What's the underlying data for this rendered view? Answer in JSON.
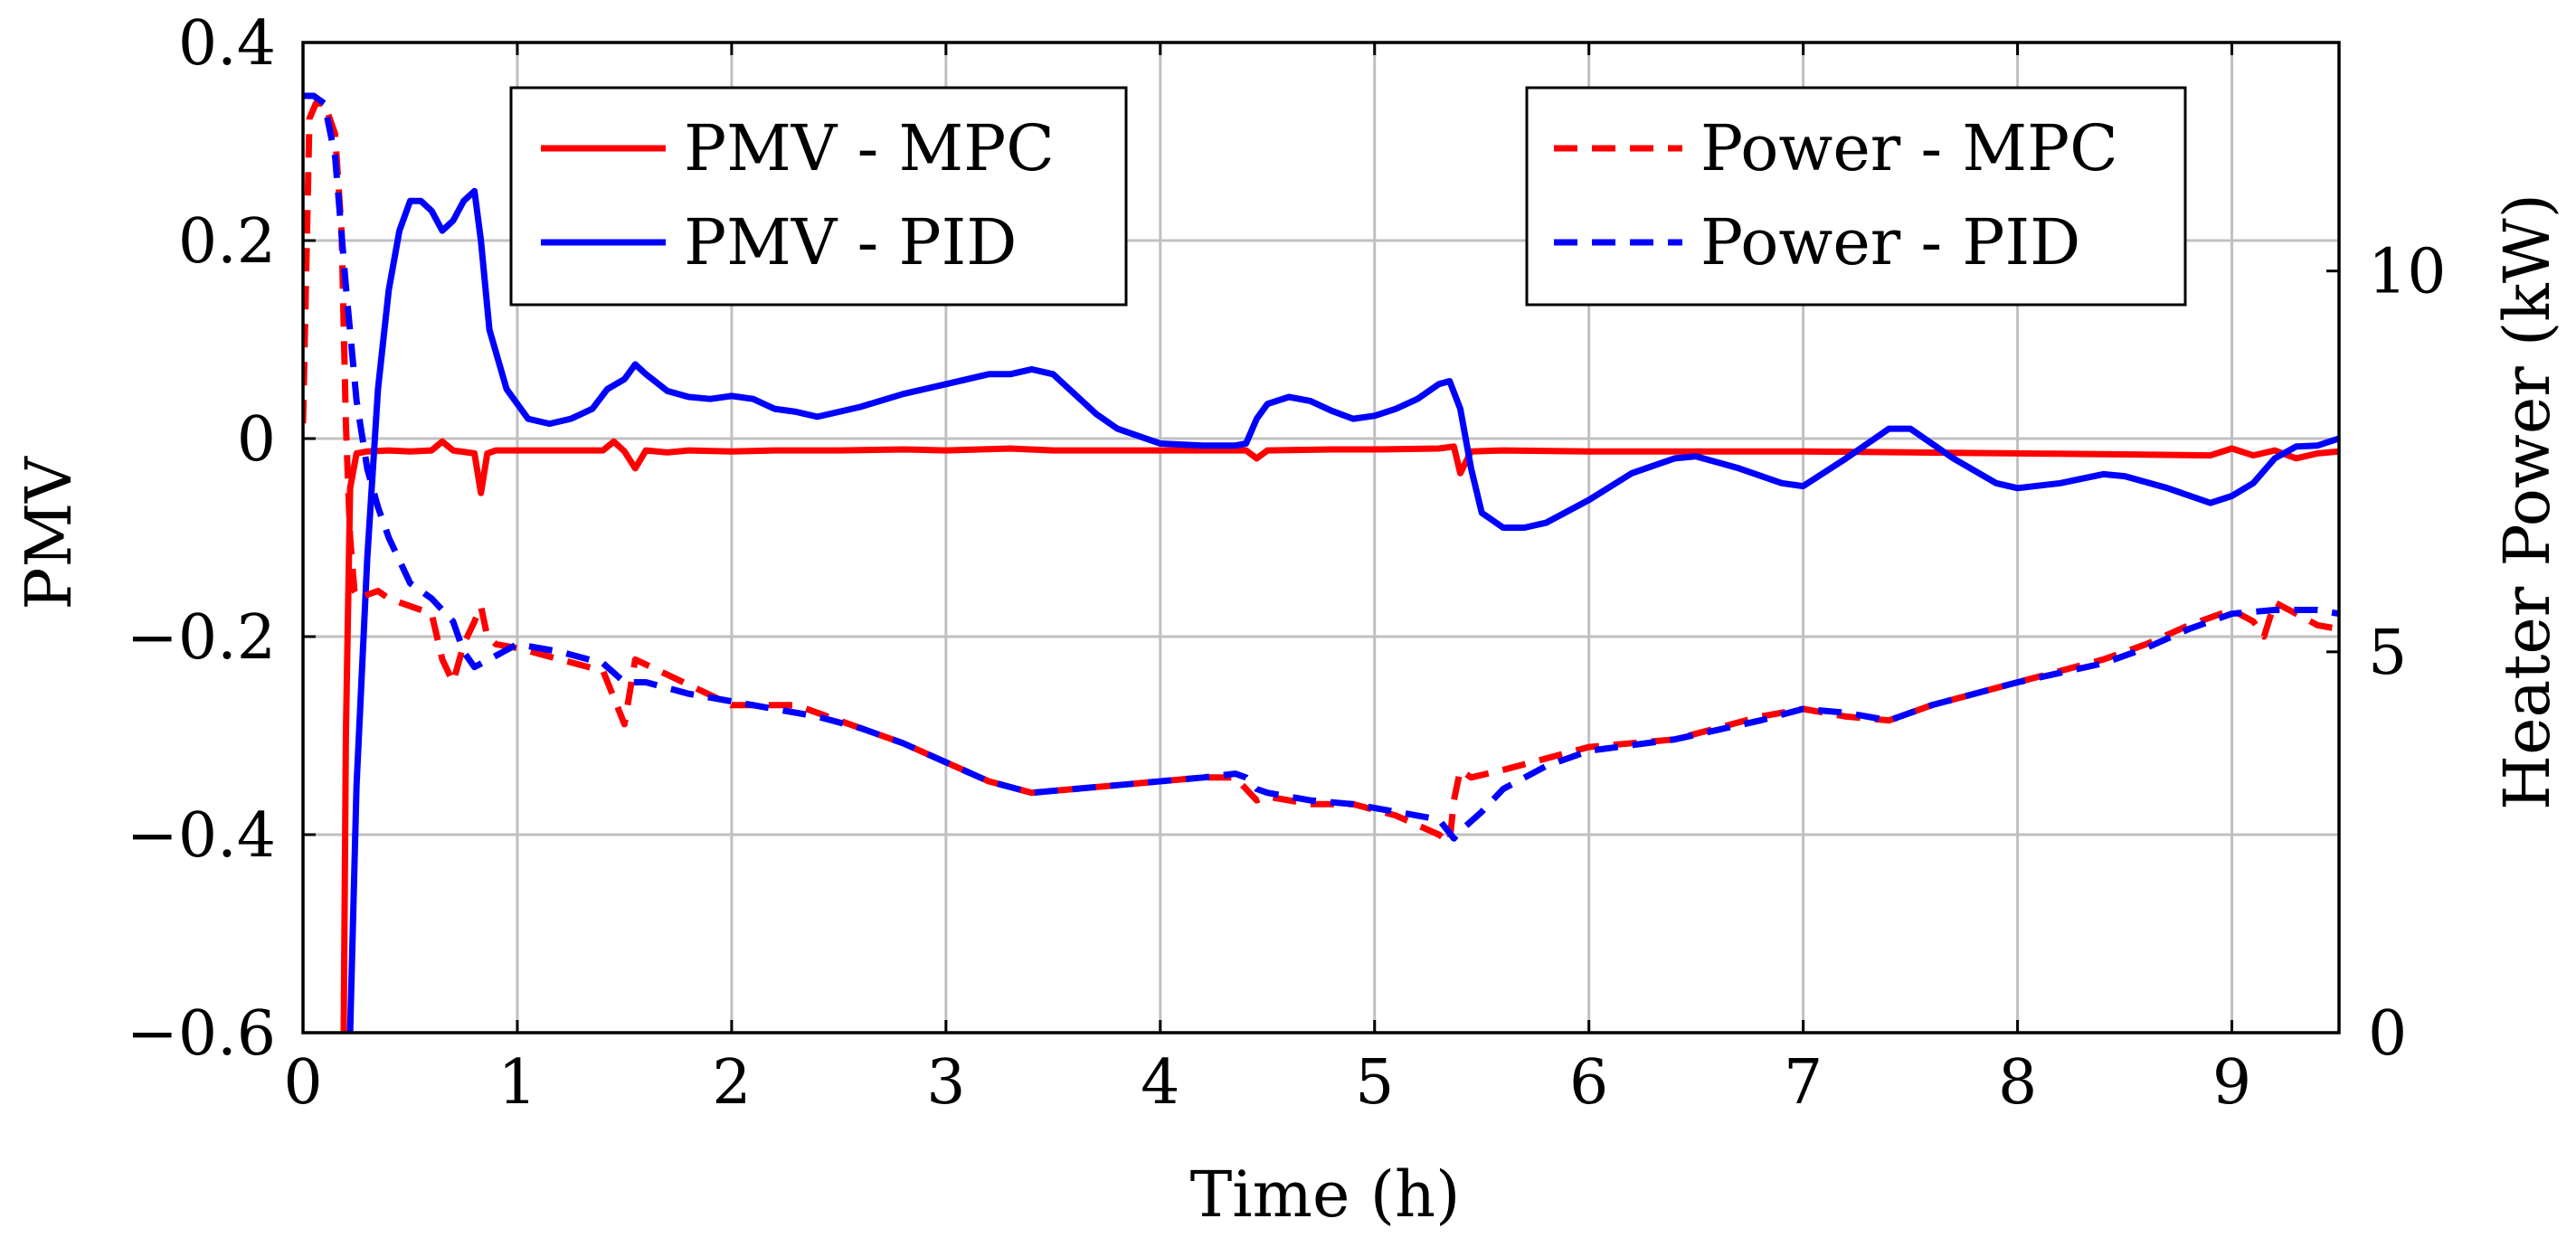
{
  "chart_data": {
    "type": "line",
    "title": "",
    "xlabel": "Time (h)",
    "ylabel": "PMV",
    "y2label": "Heater Power (kW)",
    "xlim": [
      0,
      9.5
    ],
    "ylim": [
      -0.6,
      0.4
    ],
    "y2lim": [
      0,
      13
    ],
    "xticks": [
      0,
      1,
      2,
      3,
      4,
      5,
      6,
      7,
      8,
      9
    ],
    "yticks": [
      -0.6,
      -0.4,
      -0.2,
      0,
      0.2,
      0.4
    ],
    "yticklabels": [
      "−0.6",
      "−0.4",
      "−0.2",
      "0",
      "0.2",
      "0.4"
    ],
    "y2ticks": [
      0,
      5,
      10
    ],
    "grid": true,
    "legends": [
      {
        "placement": "top-left",
        "entries": [
          "PMV - MPC",
          "PMV - PID"
        ]
      },
      {
        "placement": "top-right",
        "entries": [
          "Power - MPC",
          "Power - PID"
        ]
      }
    ],
    "series": [
      {
        "name": "PMV - MPC",
        "axis": "left",
        "color": "#ff0000",
        "style": "solid",
        "x": [
          0.19,
          0.2,
          0.22,
          0.25,
          0.3,
          0.4,
          0.5,
          0.6,
          0.65,
          0.7,
          0.8,
          0.83,
          0.86,
          0.9,
          1.0,
          1.2,
          1.4,
          1.45,
          1.5,
          1.55,
          1.6,
          1.7,
          1.8,
          2.0,
          2.2,
          2.5,
          2.8,
          3.0,
          3.3,
          3.5,
          3.8,
          4.0,
          4.3,
          4.4,
          4.45,
          4.5,
          4.8,
          5.0,
          5.3,
          5.37,
          5.4,
          5.45,
          5.6,
          6.0,
          6.5,
          7.0,
          7.5,
          8.0,
          8.5,
          8.9,
          9.0,
          9.1,
          9.2,
          9.3,
          9.4,
          9.5
        ],
        "y": [
          -0.6,
          -0.3,
          -0.05,
          -0.015,
          -0.013,
          -0.012,
          -0.013,
          -0.012,
          -0.003,
          -0.012,
          -0.015,
          -0.055,
          -0.015,
          -0.012,
          -0.012,
          -0.012,
          -0.012,
          -0.003,
          -0.013,
          -0.03,
          -0.012,
          -0.014,
          -0.012,
          -0.013,
          -0.012,
          -0.012,
          -0.011,
          -0.012,
          -0.01,
          -0.012,
          -0.012,
          -0.012,
          -0.012,
          -0.012,
          -0.02,
          -0.012,
          -0.011,
          -0.011,
          -0.01,
          -0.008,
          -0.035,
          -0.013,
          -0.012,
          -0.013,
          -0.013,
          -0.013,
          -0.014,
          -0.015,
          -0.016,
          -0.017,
          -0.01,
          -0.017,
          -0.012,
          -0.02,
          -0.015,
          -0.013
        ]
      },
      {
        "name": "PMV - PID",
        "axis": "left",
        "color": "#0000ff",
        "style": "solid",
        "x": [
          0.22,
          0.25,
          0.3,
          0.35,
          0.4,
          0.45,
          0.5,
          0.55,
          0.6,
          0.65,
          0.7,
          0.75,
          0.8,
          0.83,
          0.87,
          0.95,
          1.05,
          1.15,
          1.25,
          1.35,
          1.42,
          1.5,
          1.55,
          1.6,
          1.7,
          1.8,
          1.9,
          2.0,
          2.1,
          2.2,
          2.3,
          2.4,
          2.6,
          2.8,
          3.0,
          3.2,
          3.3,
          3.4,
          3.5,
          3.6,
          3.7,
          3.8,
          4.0,
          4.2,
          4.35,
          4.4,
          4.45,
          4.5,
          4.6,
          4.7,
          4.8,
          4.9,
          5.0,
          5.1,
          5.2,
          5.3,
          5.35,
          5.4,
          5.45,
          5.5,
          5.6,
          5.7,
          5.8,
          6.0,
          6.2,
          6.4,
          6.5,
          6.7,
          6.9,
          7.0,
          7.2,
          7.4,
          7.5,
          7.7,
          7.9,
          8.0,
          8.2,
          8.4,
          8.5,
          8.7,
          8.9,
          9.0,
          9.1,
          9.2,
          9.3,
          9.4,
          9.5
        ],
        "y": [
          -0.6,
          -0.35,
          -0.12,
          0.05,
          0.15,
          0.21,
          0.24,
          0.24,
          0.23,
          0.21,
          0.22,
          0.24,
          0.25,
          0.2,
          0.11,
          0.05,
          0.02,
          0.015,
          0.02,
          0.03,
          0.05,
          0.06,
          0.075,
          0.065,
          0.048,
          0.042,
          0.04,
          0.043,
          0.04,
          0.03,
          0.027,
          0.022,
          0.032,
          0.045,
          0.055,
          0.065,
          0.065,
          0.07,
          0.065,
          0.045,
          0.025,
          0.01,
          -0.005,
          -0.007,
          -0.007,
          -0.005,
          0.02,
          0.035,
          0.042,
          0.038,
          0.028,
          0.02,
          0.023,
          0.03,
          0.04,
          0.055,
          0.058,
          0.03,
          -0.03,
          -0.075,
          -0.09,
          -0.09,
          -0.085,
          -0.062,
          -0.035,
          -0.02,
          -0.018,
          -0.03,
          -0.045,
          -0.048,
          -0.02,
          0.01,
          0.01,
          -0.02,
          -0.045,
          -0.05,
          -0.045,
          -0.036,
          -0.038,
          -0.05,
          -0.065,
          -0.058,
          -0.045,
          -0.02,
          -0.008,
          -0.007,
          0.0
        ]
      },
      {
        "name": "Power - MPC",
        "axis": "right",
        "color": "#ff0000",
        "style": "dashed",
        "x": [
          0.0,
          0.03,
          0.06,
          0.1,
          0.15,
          0.18,
          0.2,
          0.22,
          0.24,
          0.26,
          0.3,
          0.35,
          0.4,
          0.5,
          0.6,
          0.65,
          0.7,
          0.75,
          0.8,
          0.83,
          0.86,
          0.9,
          1.0,
          1.2,
          1.4,
          1.45,
          1.5,
          1.55,
          1.7,
          2.0,
          2.3,
          2.5,
          2.8,
          3.0,
          3.2,
          3.4,
          3.6,
          3.8,
          4.0,
          4.2,
          4.35,
          4.45,
          4.5,
          4.7,
          4.9,
          5.1,
          5.3,
          5.35,
          5.37,
          5.4,
          5.45,
          5.6,
          5.8,
          6.0,
          6.4,
          6.8,
          7.0,
          7.2,
          7.4,
          7.6,
          8.0,
          8.4,
          8.6,
          8.8,
          9.0,
          9.1,
          9.15,
          9.2,
          9.3,
          9.4,
          9.5
        ],
        "y": [
          8.0,
          12.0,
          12.2,
          12.2,
          11.8,
          10.5,
          8.0,
          6.5,
          5.8,
          5.7,
          5.75,
          5.8,
          5.7,
          5.6,
          5.5,
          4.9,
          4.6,
          5.1,
          5.4,
          5.6,
          5.2,
          5.1,
          5.05,
          4.9,
          4.75,
          4.4,
          4.05,
          4.9,
          4.7,
          4.3,
          4.3,
          4.1,
          3.8,
          3.55,
          3.3,
          3.15,
          3.2,
          3.25,
          3.3,
          3.35,
          3.35,
          3.05,
          3.1,
          3.0,
          3.0,
          2.85,
          2.6,
          2.5,
          3.05,
          3.45,
          3.35,
          3.45,
          3.6,
          3.75,
          3.85,
          4.15,
          4.25,
          4.15,
          4.1,
          4.3,
          4.6,
          4.9,
          5.1,
          5.35,
          5.55,
          5.4,
          5.2,
          5.65,
          5.5,
          5.35,
          5.3
        ]
      },
      {
        "name": "Power - PID",
        "axis": "right",
        "color": "#0000ff",
        "style": "dashed",
        "x": [
          0.0,
          0.05,
          0.1,
          0.15,
          0.2,
          0.25,
          0.3,
          0.35,
          0.4,
          0.45,
          0.5,
          0.6,
          0.7,
          0.75,
          0.8,
          0.9,
          1.0,
          1.2,
          1.4,
          1.5,
          1.6,
          1.8,
          2.0,
          2.2,
          2.4,
          2.6,
          2.8,
          3.0,
          3.2,
          3.4,
          3.6,
          3.8,
          4.0,
          4.2,
          4.35,
          4.4,
          4.45,
          4.5,
          4.7,
          4.9,
          5.1,
          5.3,
          5.37,
          5.4,
          5.5,
          5.6,
          5.8,
          6.0,
          6.4,
          6.8,
          7.0,
          7.2,
          7.4,
          7.6,
          8.0,
          8.4,
          8.6,
          8.8,
          9.0,
          9.2,
          9.4,
          9.5
        ],
        "y": [
          12.3,
          12.3,
          12.2,
          11.5,
          9.8,
          8.3,
          7.4,
          6.9,
          6.5,
          6.2,
          5.9,
          5.7,
          5.4,
          5.0,
          4.8,
          4.95,
          5.1,
          5.0,
          4.85,
          4.6,
          4.6,
          4.45,
          4.35,
          4.25,
          4.15,
          4.0,
          3.8,
          3.55,
          3.3,
          3.15,
          3.2,
          3.25,
          3.3,
          3.35,
          3.4,
          3.35,
          3.2,
          3.15,
          3.05,
          3.0,
          2.9,
          2.8,
          2.55,
          2.65,
          2.9,
          3.2,
          3.5,
          3.7,
          3.85,
          4.1,
          4.25,
          4.2,
          4.1,
          4.3,
          4.6,
          4.85,
          5.05,
          5.3,
          5.5,
          5.55,
          5.55,
          5.5
        ]
      }
    ]
  }
}
